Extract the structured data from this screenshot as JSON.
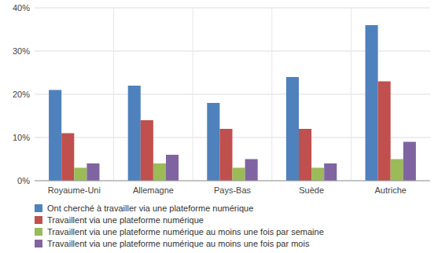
{
  "chart_data": {
    "type": "bar",
    "categories": [
      "Royaume-Uni",
      "Allemagne",
      "Pays-Bas",
      "Suède",
      "Autriche"
    ],
    "series": [
      {
        "name": "Ont cherché à travailler via une plateforme numérique",
        "color": "#4F81BD",
        "values": [
          21,
          22,
          18,
          24,
          36
        ]
      },
      {
        "name": "Travaillent via une plateforme numérique",
        "color": "#C0504D",
        "values": [
          11,
          14,
          12,
          12,
          23
        ]
      },
      {
        "name": "Travaillent via une plateforme numérique au moins une fois par semaine",
        "color": "#9BBB59",
        "values": [
          3,
          4,
          3,
          3,
          5
        ]
      },
      {
        "name": "Travaillent via une plateforme numérique au moins une fois par mois",
        "color": "#8064A2",
        "values": [
          4,
          6,
          5,
          4,
          9
        ]
      }
    ],
    "ylim": [
      0,
      40
    ],
    "yticks": [
      {
        "value": 0,
        "label": "0%"
      },
      {
        "value": 10,
        "label": "10%"
      },
      {
        "value": 20,
        "label": "20%"
      },
      {
        "value": 30,
        "label": "30%"
      },
      {
        "value": 40,
        "label": "40%"
      }
    ],
    "grid": true,
    "legend": "bottom"
  }
}
